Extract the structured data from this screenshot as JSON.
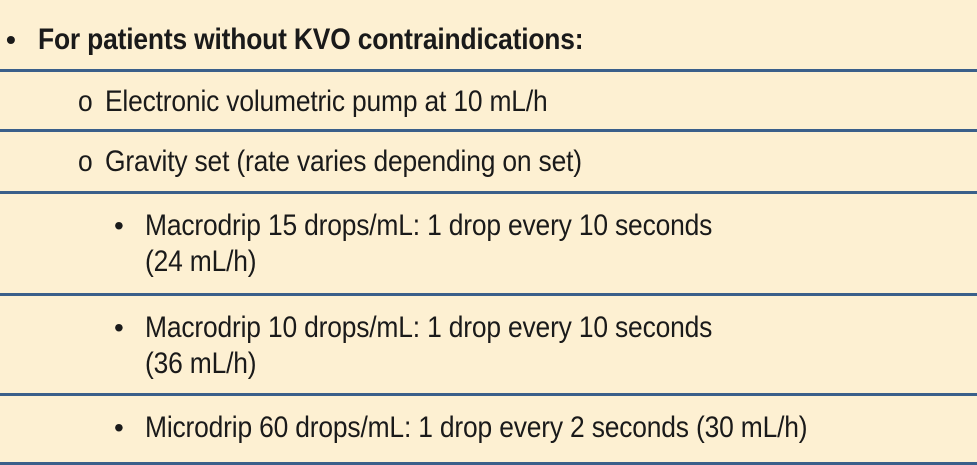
{
  "header": {
    "bullet": "•",
    "text": "For patients without KVO contraindications:"
  },
  "options": [
    {
      "marker": "o",
      "text": "Electronic volumetric pump at 10 mL/h"
    },
    {
      "marker": "o",
      "text": "Gravity set (rate varies depending on set)"
    }
  ],
  "sub_items": [
    {
      "bullet": "•",
      "line1": "Macrodrip 15 drops/mL: 1 drop every 10 seconds",
      "line2": "(24 mL/h)"
    },
    {
      "bullet": "•",
      "line1": "Macrodrip 10 drops/mL: 1 drop every 10 seconds",
      "line2": "(36 mL/h)"
    },
    {
      "bullet": "•",
      "line1": "Microdrip 60 drops/mL: 1 drop every 2 seconds (30 mL/h)",
      "line2": ""
    }
  ],
  "colors": {
    "background": "#fdf0d2",
    "rule": "#3a5f8a",
    "text": "#1a1a1a"
  }
}
